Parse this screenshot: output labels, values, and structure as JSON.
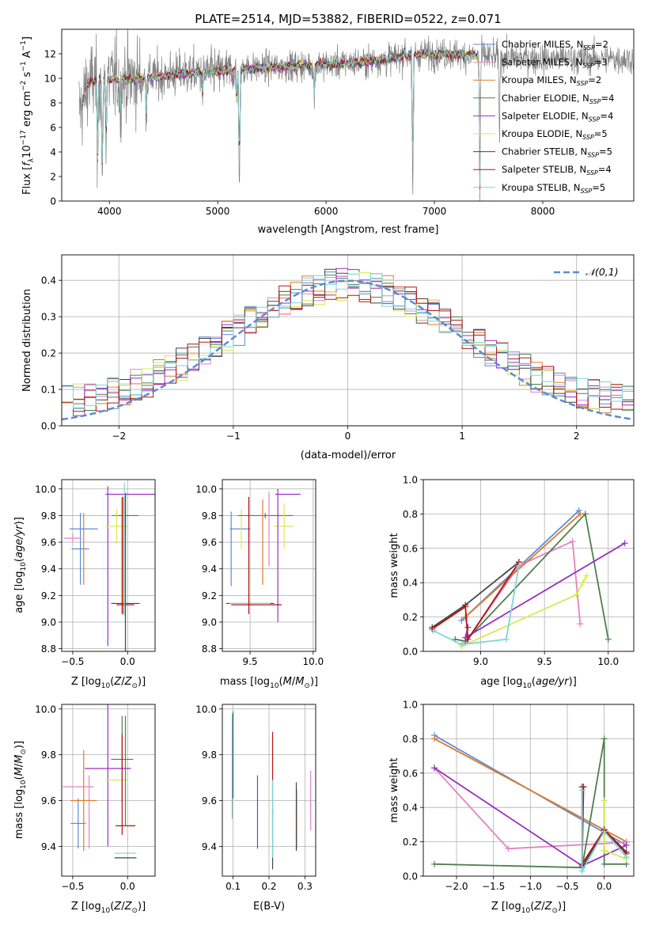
{
  "colors": {
    "Chabrier MILES": "#5b8bd6",
    "Salpeter MILES": "#e283c1",
    "Kroupa MILES": "#e07b2a",
    "Chabrier ELODIE": "#4f7f4f",
    "Salpeter ELODIE": "#9b2fbf",
    "Kroupa ELODIE": "#d7ea54",
    "Chabrier STELIB": "#444444",
    "Salpeter STELIB": "#b01515",
    "Kroupa STELIB": "#7fd4d8",
    "data": "#808080",
    "normal": "#5b8bd6"
  },
  "chart_data": [
    {
      "id": "spectrum",
      "type": "line",
      "title": "PLATE=2514, MJD=53882, FIBERID=0522, z=0.071",
      "xlabel": "wavelength [Angstrom, rest frame]",
      "ylabel_parts": [
        "Flux [",
        "f",
        "λ",
        "10",
        "−17",
        " erg cm",
        "−2",
        " s",
        "−1",
        " A",
        "−1",
        "]"
      ],
      "xlim": [
        3560,
        8840
      ],
      "ylim": [
        0,
        14
      ],
      "xticks": [
        4000,
        5000,
        6000,
        7000,
        8000
      ],
      "yticks": [
        0,
        2,
        4,
        6,
        8,
        10,
        12
      ],
      "grid": false,
      "legend_position": "upper-right",
      "legend": [
        {
          "name": "Chabrier MILES",
          "nssp": "2"
        },
        {
          "name": "Salpeter MILES",
          "nssp": "3"
        },
        {
          "name": "Kroupa MILES",
          "nssp": "2"
        },
        {
          "name": "Chabrier ELODIE",
          "nssp": "4"
        },
        {
          "name": "Salpeter ELODIE",
          "nssp": "4"
        },
        {
          "name": "Kroupa ELODIE",
          "nssp": "5"
        },
        {
          "name": "Chabrier STELIB",
          "nssp": "5"
        },
        {
          "name": "Salpeter STELIB",
          "nssp": "4"
        },
        {
          "name": "Kroupa STELIB",
          "nssp": "5"
        }
      ],
      "continuum": [
        [
          3740,
          7.5
        ],
        [
          3800,
          9.6
        ],
        [
          3900,
          9.8
        ],
        [
          4000,
          9.9
        ],
        [
          4100,
          9.9
        ],
        [
          4300,
          10.0
        ],
        [
          4500,
          10.2
        ],
        [
          4700,
          10.4
        ],
        [
          4900,
          10.5
        ],
        [
          5100,
          10.6
        ],
        [
          5300,
          10.8
        ],
        [
          5500,
          10.9
        ],
        [
          5700,
          11.0
        ],
        [
          5900,
          11.1
        ],
        [
          6100,
          11.2
        ],
        [
          6300,
          11.3
        ],
        [
          6500,
          11.5
        ],
        [
          6700,
          11.8
        ],
        [
          6900,
          12.0
        ],
        [
          7100,
          12.0
        ],
        [
          7300,
          11.9
        ],
        [
          7420,
          11.8
        ],
        [
          7600,
          11.7
        ],
        [
          8000,
          11.6
        ],
        [
          8400,
          11.6
        ],
        [
          8800,
          11.6
        ]
      ],
      "absorption": [
        [
          3890,
          -7.5
        ],
        [
          3935,
          -9.5
        ],
        [
          3970,
          -5.0
        ],
        [
          4101,
          -3.0
        ],
        [
          4340,
          -3.0
        ],
        [
          4861,
          -2.0
        ],
        [
          5175,
          -3.0
        ],
        [
          5200,
          -10.0
        ],
        [
          5890,
          -3.0
        ],
        [
          6563,
          -1.5
        ],
        [
          6800,
          -12.0
        ],
        [
          7420,
          -12.0
        ],
        [
          7600,
          -6.0
        ]
      ],
      "emission": [
        [
          6563,
          1.2
        ],
        [
          6725,
          0.6
        ]
      ],
      "noise": 1.1,
      "data_xrange": [
        3720,
        8840
      ],
      "model_xrange": [
        3740,
        7420
      ]
    },
    {
      "id": "residuals",
      "type": "histogram",
      "xlabel": "(data-model)/error",
      "ylabel": "Normed distribution",
      "xlim": [
        -2.5,
        2.5
      ],
      "ylim": [
        0,
        0.47
      ],
      "xticks": [
        -2,
        -1,
        0,
        1,
        2
      ],
      "yticks": [
        0.0,
        0.1,
        0.2,
        0.3,
        0.4
      ],
      "grid": true,
      "legend_position": "upper-right",
      "legend": [
        {
          "name": "N(0,1)",
          "label": "𝒩(0,1)"
        }
      ],
      "bin_width": 0.1
    },
    {
      "id": "age-vs-Z",
      "type": "errorbar",
      "xlabel": "Z [log10(Z/Z⊙)]",
      "ylabel": "age  [log10(age/yr)]",
      "xlim": [
        -0.6,
        0.25
      ],
      "ylim": [
        8.78,
        10.07
      ],
      "xticks": [
        -0.5,
        0.0
      ],
      "yticks": [
        8.8,
        9.0,
        9.2,
        9.4,
        9.6,
        9.8,
        10.0
      ],
      "grid": true,
      "points": [
        {
          "m": "Chabrier MILES",
          "x": -0.43,
          "y": 9.55,
          "xe": 0.08,
          "ye": 0.27
        },
        {
          "m": "Salpeter MILES",
          "x": -0.5,
          "y": 9.63,
          "xe": 0.08,
          "ye": 0.03
        },
        {
          "m": "Kroupa MILES",
          "x": -0.4,
          "y": 9.55,
          "xe": 0.0,
          "ye": 0.27
        },
        {
          "m": "Chabrier MILES",
          "x": -0.4,
          "y": 9.7,
          "xe": 0.13,
          "ye": 0.0
        },
        {
          "m": "Salpeter ELODIE",
          "x": -0.18,
          "y": 9.42,
          "xe": 0.0,
          "ye": 0.6
        },
        {
          "m": "Salpeter ELODIE",
          "x": 0.06,
          "y": 9.96,
          "xe": 0.26,
          "ye": 0.0
        },
        {
          "m": "Chabrier ELODIE",
          "x": -0.02,
          "y": 9.8,
          "xe": 0.12,
          "ye": 0.15
        },
        {
          "m": "Kroupa ELODIE",
          "x": -0.1,
          "y": 9.72,
          "xe": 0.1,
          "ye": 0.13
        },
        {
          "m": "Salpeter STELIB",
          "x": -0.05,
          "y": 9.5,
          "xe": 0.0,
          "ye": 0.44
        },
        {
          "m": "Kroupa MILES",
          "x": -0.04,
          "y": 9.5,
          "xe": 0.0,
          "ye": 0.44
        },
        {
          "m": "Chabrier STELIB",
          "x": -0.02,
          "y": 9.14,
          "xe": 0.13,
          "ye": 0.83
        },
        {
          "m": "Salpeter STELIB",
          "x": -0.02,
          "y": 9.13,
          "xe": 0.08,
          "ye": 0.0
        },
        {
          "m": "Kroupa STELIB",
          "x": -0.03,
          "y": 9.55,
          "xe": 0.0,
          "ye": 0.5
        }
      ]
    },
    {
      "id": "age-vs-mass",
      "type": "errorbar",
      "xlabel": "mass [log10(M/M⊙)]",
      "xlim": [
        9.28,
        10.02
      ],
      "ylim": [
        8.78,
        10.07
      ],
      "xticks": [
        9.5,
        10.0
      ],
      "yticks": [
        8.8,
        9.0,
        9.2,
        9.4,
        9.6,
        9.8,
        10.0
      ],
      "grid": true,
      "points": [
        {
          "m": "Chabrier MILES",
          "x": 9.35,
          "y": 9.55,
          "xe": 0.0,
          "ye": 0.28
        },
        {
          "m": "Chabrier MILES",
          "x": 9.42,
          "y": 9.7,
          "xe": 0.08,
          "ye": 0.0
        },
        {
          "m": "Kroupa ELODIE",
          "x": 9.43,
          "y": 9.7,
          "xe": 0.0,
          "ye": 0.15
        },
        {
          "m": "Salpeter ELODIE",
          "x": 9.8,
          "y": 9.96,
          "xe": 0.1,
          "ye": 0.0
        },
        {
          "m": "Chabrier ELODIE",
          "x": 9.62,
          "y": 9.8,
          "xe": 0.22,
          "ye": 0.02
        },
        {
          "m": "Kroupa ELODIE",
          "x": 9.77,
          "y": 9.72,
          "xe": 0.08,
          "ye": 0.17
        },
        {
          "m": "Salpeter MILES",
          "x": 9.65,
          "y": 9.7,
          "xe": 0.0,
          "ye": 0.28
        },
        {
          "m": "Kroupa MILES",
          "x": 9.6,
          "y": 9.6,
          "xe": 0.0,
          "ye": 0.32
        },
        {
          "m": "Salpeter ELODIE",
          "x": 9.72,
          "y": 9.5,
          "xe": 0.0,
          "ye": 0.5
        },
        {
          "m": "Chabrier STELIB",
          "x": 9.5,
          "y": 9.14,
          "xe": 0.19,
          "ye": 0.0
        },
        {
          "m": "Kroupa STELIB",
          "x": 9.5,
          "y": 9.14,
          "xe": 0.16,
          "ye": 0.0
        },
        {
          "m": "Salpeter STELIB",
          "x": 9.55,
          "y": 9.13,
          "xe": 0.2,
          "ye": 0.0
        },
        {
          "m": "Salpeter STELIB",
          "x": 9.49,
          "y": 9.5,
          "xe": 0.0,
          "ye": 0.44
        }
      ]
    },
    {
      "id": "weight-vs-age",
      "type": "line",
      "xlabel": "age  [log10(age/yr)]",
      "ylabel": "mass weight",
      "xlim": [
        8.55,
        10.2
      ],
      "ylim": [
        0,
        1
      ],
      "xticks": [
        9.0,
        9.5,
        10.0
      ],
      "yticks": [
        0.0,
        0.2,
        0.4,
        0.6,
        0.8,
        1.0
      ],
      "grid": true,
      "series": [
        {
          "m": "Chabrier MILES",
          "x": [
            8.85,
            9.77
          ],
          "y": [
            0.18,
            0.82
          ]
        },
        {
          "m": "Salpeter MILES",
          "x": [
            8.88,
            9.3,
            9.72,
            9.78
          ],
          "y": [
            0.05,
            0.5,
            0.64,
            0.16
          ]
        },
        {
          "m": "Kroupa MILES",
          "x": [
            8.88,
            9.78
          ],
          "y": [
            0.2,
            0.8
          ]
        },
        {
          "m": "Chabrier ELODIE",
          "x": [
            8.8,
            8.88,
            9.82,
            10.0
          ],
          "y": [
            0.07,
            0.06,
            0.8,
            0.07
          ]
        },
        {
          "m": "Salpeter ELODIE",
          "x": [
            8.9,
            8.88,
            10.13
          ],
          "y": [
            0.14,
            0.08,
            0.63
          ]
        },
        {
          "m": "Kroupa ELODIE",
          "x": [
            8.85,
            9.75,
            9.8,
            9.83
          ],
          "y": [
            0.03,
            0.33,
            0.4,
            0.44
          ]
        },
        {
          "m": "Chabrier STELIB",
          "x": [
            8.62,
            8.88,
            9.3
          ],
          "y": [
            0.14,
            0.27,
            0.52
          ]
        },
        {
          "m": "Salpeter STELIB",
          "x": [
            8.62,
            8.88,
            8.9,
            9.3
          ],
          "y": [
            0.13,
            0.26,
            0.07,
            0.52
          ]
        },
        {
          "m": "Kroupa STELIB",
          "x": [
            8.63,
            8.85,
            9.2,
            9.3
          ],
          "y": [
            0.12,
            0.04,
            0.07,
            0.5
          ]
        }
      ]
    },
    {
      "id": "mass-vs-Z",
      "type": "errorbar",
      "xlabel": "Z [log10(Z/Z⊙)]",
      "ylabel": "mass [log10(M/M⊙)]",
      "xlim": [
        -0.6,
        0.25
      ],
      "ylim": [
        9.27,
        10.02
      ],
      "xticks": [
        -0.5,
        0.0
      ],
      "yticks": [
        9.4,
        9.6,
        9.8,
        10.0
      ],
      "grid": true,
      "points": [
        {
          "m": "Chabrier MILES",
          "x": -0.45,
          "y": 9.5,
          "xe": 0.07,
          "ye": 0.11
        },
        {
          "m": "Salpeter MILES",
          "x": -0.45,
          "y": 9.66,
          "xe": 0.14,
          "ye": 0.0
        },
        {
          "m": "Salpeter MILES",
          "x": -0.35,
          "y": 9.55,
          "xe": 0.0,
          "ye": 0.16
        },
        {
          "m": "Kroupa MILES",
          "x": -0.4,
          "y": 9.6,
          "xe": 0.12,
          "ye": 0.22
        },
        {
          "m": "Salpeter ELODIE",
          "x": -0.18,
          "y": 9.74,
          "xe": 0.21,
          "ye": 0.34
        },
        {
          "m": "Chabrier ELODIE",
          "x": -0.05,
          "y": 9.78,
          "xe": 0.1,
          "ye": 0.19
        },
        {
          "m": "Kroupa ELODIE",
          "x": -0.1,
          "y": 9.69,
          "xe": 0.1,
          "ye": 0.0
        },
        {
          "m": "Salpeter STELIB",
          "x": -0.05,
          "y": 9.67,
          "xe": 0.0,
          "ye": 0.22
        },
        {
          "m": "Salpeter STELIB",
          "x": -0.02,
          "y": 9.49,
          "xe": 0.09,
          "ye": 0.0
        },
        {
          "m": "Chabrier STELIB",
          "x": -0.02,
          "y": 9.35,
          "xe": 0.1,
          "ye": 0.0
        },
        {
          "m": "Kroupa STELIB",
          "x": -0.02,
          "y": 9.37,
          "xe": 0.1,
          "ye": 0.0
        },
        {
          "m": "Chabrier ELODIE",
          "x": -0.02,
          "y": 9.73,
          "xe": 0.0,
          "ye": 0.24
        }
      ]
    },
    {
      "id": "mass-vs-ebv",
      "type": "errorbar",
      "xlabel": "E(B-V)",
      "xlim": [
        0.07,
        0.33
      ],
      "ylim": [
        9.27,
        10.02
      ],
      "xticks": [
        0.1,
        0.2,
        0.3
      ],
      "yticks": [
        9.4,
        9.6,
        9.8,
        10.0
      ],
      "grid": true,
      "points": [
        {
          "m": "Chabrier MILES",
          "x": 0.098,
          "y": 9.75,
          "xe": 0.0,
          "ye": 0.23
        },
        {
          "m": "Kroupa ELODIE",
          "x": 0.1,
          "y": 9.7,
          "xe": 0.0,
          "ye": 0.18
        },
        {
          "m": "Chabrier ELODIE",
          "x": 0.1,
          "y": 9.8,
          "xe": 0.0,
          "ye": 0.19
        },
        {
          "m": "Salpeter ELODIE",
          "x": 0.168,
          "y": 9.55,
          "xe": 0.0,
          "ye": 0.16
        },
        {
          "m": "Chabrier STELIB",
          "x": 0.21,
          "y": 9.43,
          "xe": 0.0,
          "ye": 0.13
        },
        {
          "m": "Salpeter STELIB",
          "x": 0.21,
          "y": 9.72,
          "xe": 0.0,
          "ye": 0.18
        },
        {
          "m": "Kroupa STELIB",
          "x": 0.21,
          "y": 9.52,
          "xe": 0.0,
          "ye": 0.17
        },
        {
          "m": "Kroupa MILES",
          "x": 0.277,
          "y": 9.52,
          "xe": 0.0,
          "ye": 0.13
        },
        {
          "m": "Chabrier STELIB",
          "x": 0.276,
          "y": 9.53,
          "xe": 0.0,
          "ye": 0.15
        },
        {
          "m": "Salpeter MILES",
          "x": 0.316,
          "y": 9.6,
          "xe": 0.0,
          "ye": 0.13
        }
      ]
    },
    {
      "id": "weight-vs-Z",
      "type": "line",
      "xlabel": "Z [log10(Z/Z⊙)]",
      "ylabel": "mass weight",
      "xlim": [
        -2.45,
        0.4
      ],
      "ylim": [
        0,
        1
      ],
      "xticks": [
        -2.0,
        -1.5,
        -1.0,
        -0.5,
        0.0
      ],
      "yticks": [
        0.0,
        0.2,
        0.4,
        0.6,
        0.8,
        1.0
      ],
      "grid": true,
      "series": [
        {
          "m": "Chabrier MILES",
          "x": [
            -2.3,
            0.3
          ],
          "y": [
            0.82,
            0.18
          ]
        },
        {
          "m": "Kroupa MILES",
          "x": [
            -2.3,
            0.3
          ],
          "y": [
            0.8,
            0.2
          ]
        },
        {
          "m": "Salpeter MILES",
          "x": [
            -2.3,
            -1.3,
            0.0,
            0.3
          ],
          "y": [
            0.63,
            0.16,
            0.19,
            0.2
          ]
        },
        {
          "m": "Chabrier ELODIE",
          "x": [
            -2.3,
            -0.3,
            0.0,
            0.0,
            0.3
          ],
          "y": [
            0.07,
            0.05,
            0.8,
            0.07,
            0.07
          ]
        },
        {
          "m": "Salpeter ELODIE",
          "x": [
            -2.3,
            -0.3,
            0.3
          ],
          "y": [
            0.63,
            0.06,
            0.18
          ]
        },
        {
          "m": "Kroupa ELODIE",
          "x": [
            0.0,
            0.0,
            0.3
          ],
          "y": [
            0.44,
            0.15,
            0.1
          ]
        },
        {
          "m": "Chabrier STELIB",
          "x": [
            -0.3,
            -0.3,
            0.0,
            0.3
          ],
          "y": [
            0.52,
            0.05,
            0.27,
            0.14
          ]
        },
        {
          "m": "Salpeter STELIB",
          "x": [
            -0.28,
            -0.3,
            0.0,
            0.3
          ],
          "y": [
            0.52,
            0.07,
            0.27,
            0.13
          ]
        },
        {
          "m": "Kroupa STELIB",
          "x": [
            -0.3,
            -0.3,
            0.0,
            0.3
          ],
          "y": [
            0.5,
            0.03,
            0.26,
            0.11
          ]
        }
      ]
    }
  ]
}
